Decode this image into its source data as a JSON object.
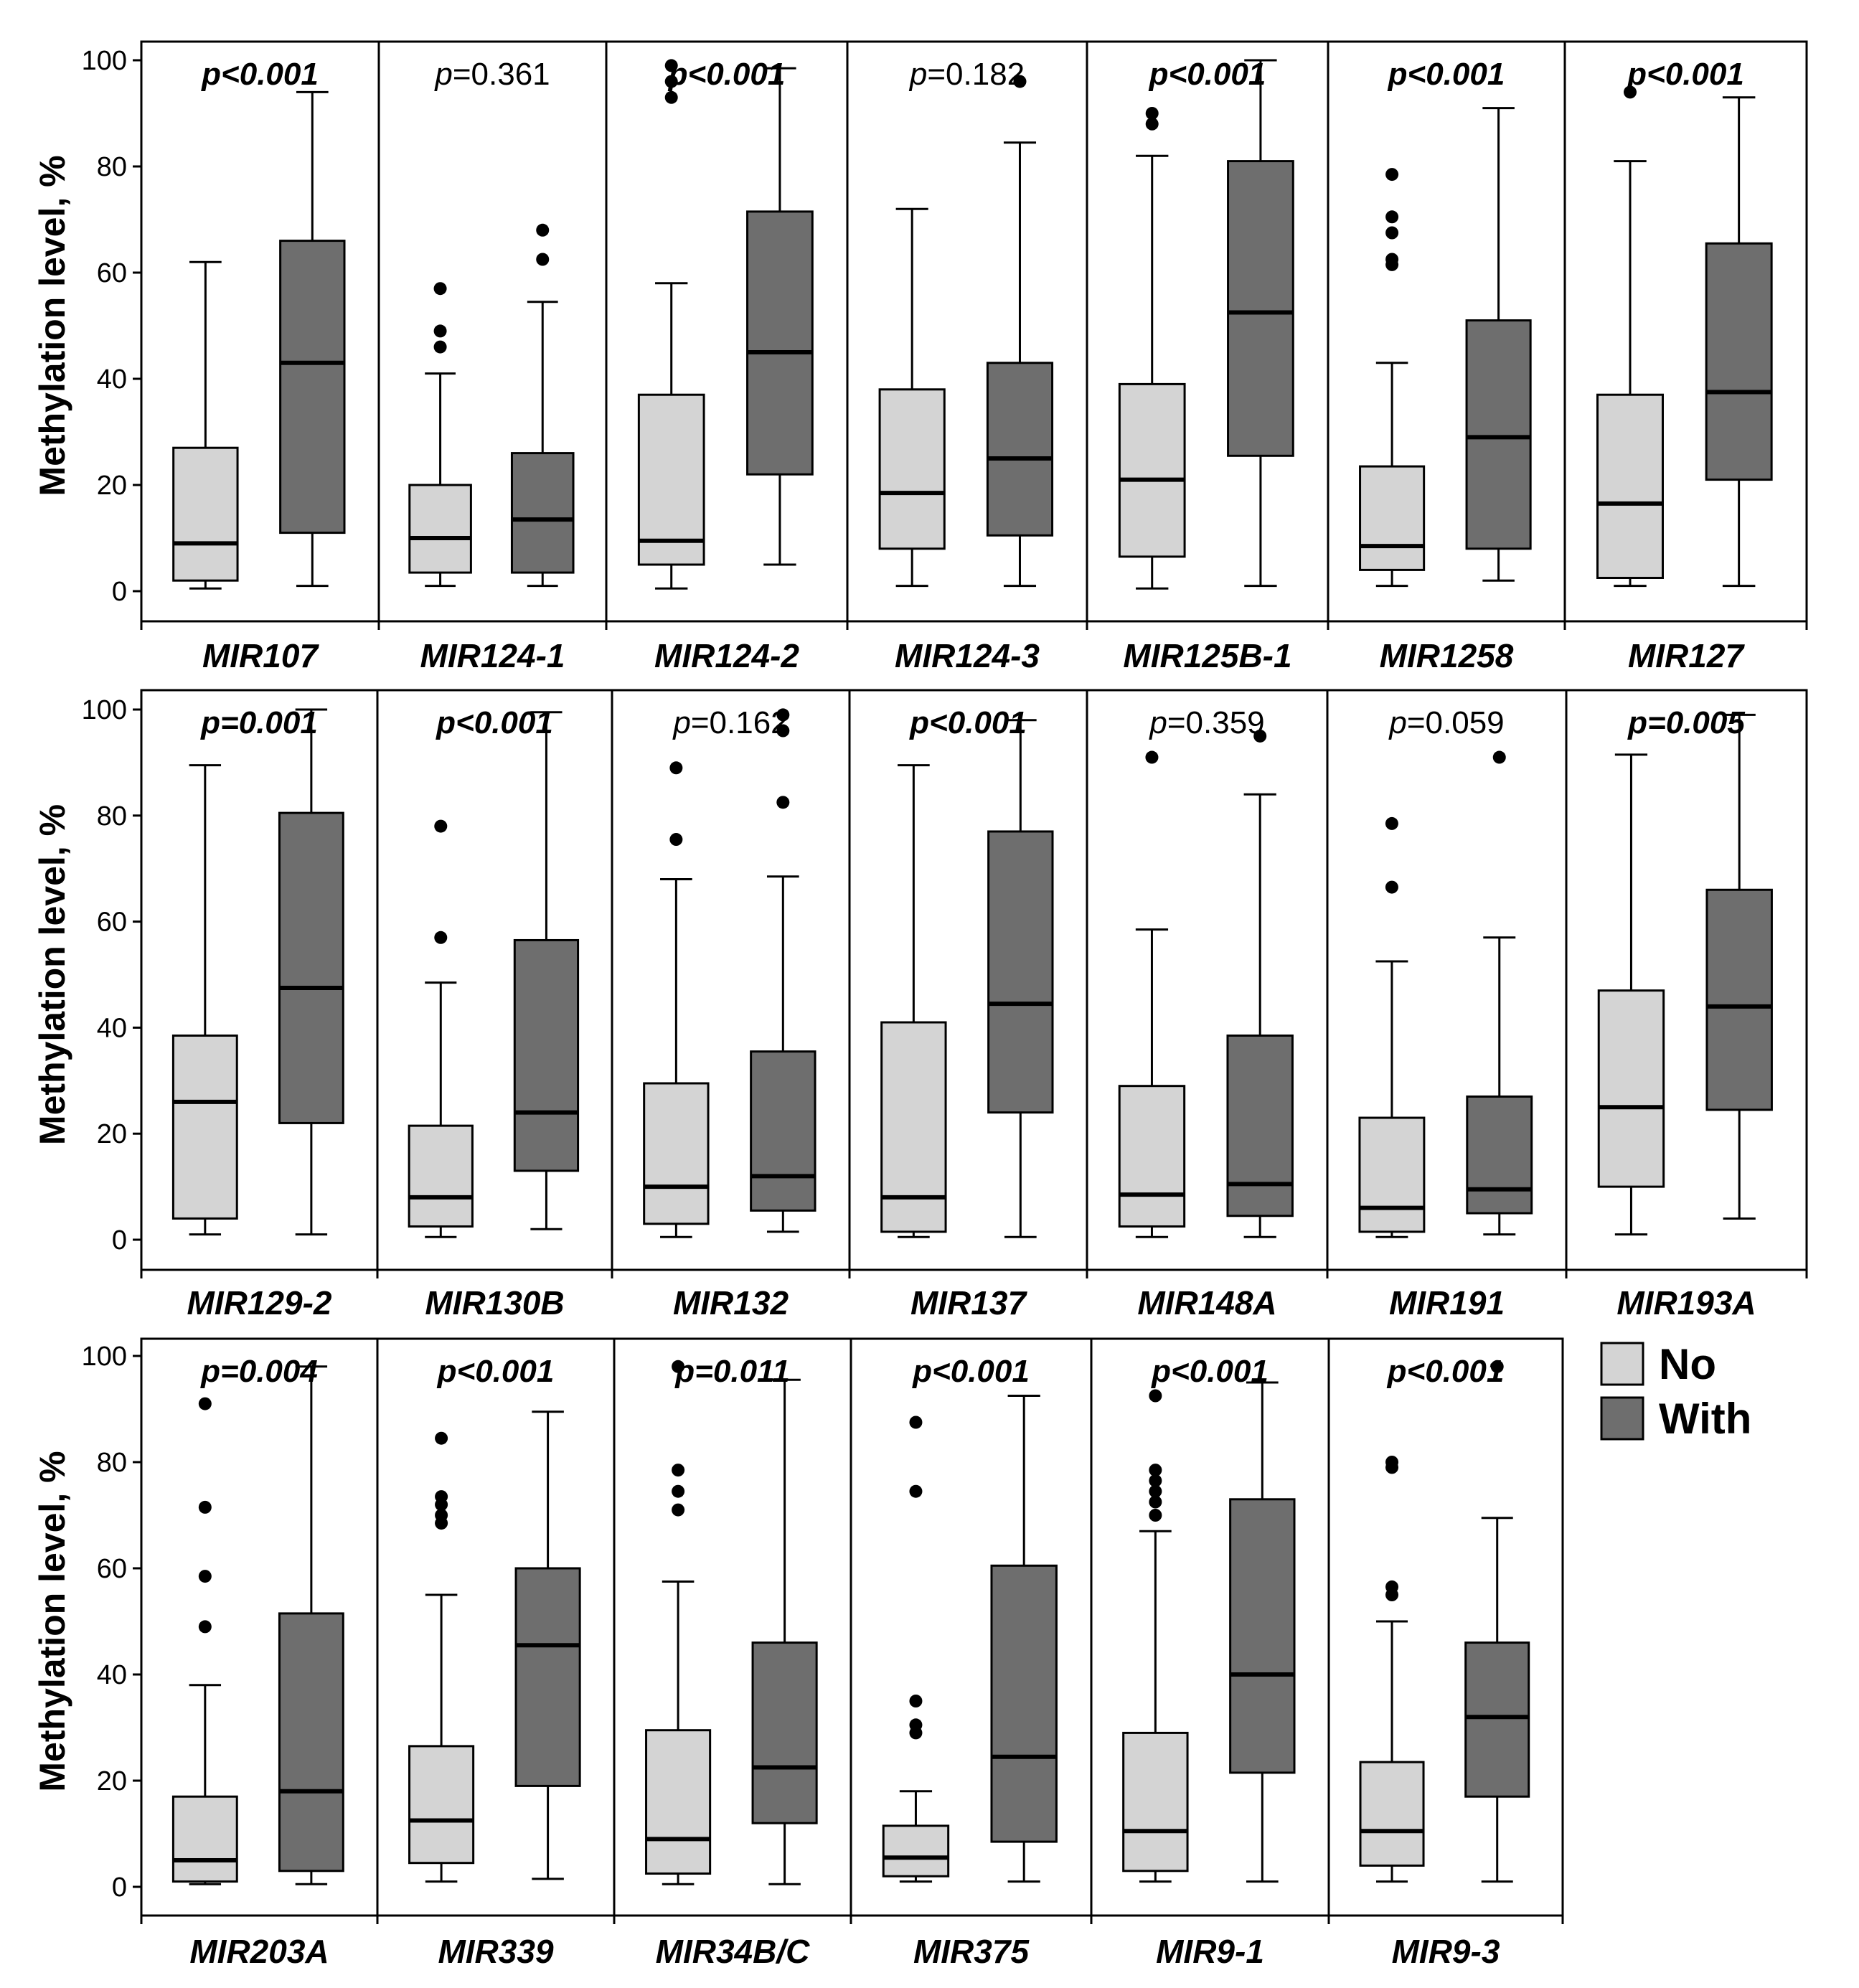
{
  "chart_data": {
    "type": "boxplot",
    "ylabel": "Methylation level, %",
    "ylim": [
      0,
      100
    ],
    "yticks": [
      0,
      20,
      40,
      60,
      80,
      100
    ],
    "legend": [
      {
        "label": "No",
        "color": "#d4d4d4"
      },
      {
        "label": "With",
        "color": "#6e6e6e"
      }
    ],
    "panels": [
      {
        "gene": "MIR107",
        "p": "p<0.001",
        "bold": true,
        "no": {
          "min": 0.5,
          "q1": 2,
          "median": 9,
          "q3": 27,
          "max": 62,
          "outliers": []
        },
        "with": {
          "min": 1,
          "q1": 11,
          "median": 43,
          "q3": 66,
          "max": 94,
          "outliers": []
        }
      },
      {
        "gene": "MIR124-1",
        "p": "p=0.361",
        "bold": false,
        "no": {
          "min": 1,
          "q1": 3.5,
          "median": 10,
          "q3": 20,
          "max": 41,
          "outliers": [
            46,
            49,
            57
          ]
        },
        "with": {
          "min": 1,
          "q1": 3.5,
          "median": 13.5,
          "q3": 26,
          "max": 54.5,
          "outliers": [
            62.5,
            68
          ]
        }
      },
      {
        "gene": "MIR124-2",
        "p": "p<0.001",
        "bold": true,
        "no": {
          "min": 0.5,
          "q1": 5,
          "median": 9.5,
          "q3": 37,
          "max": 58,
          "outliers": [
            93,
            96,
            99
          ]
        },
        "with": {
          "min": 5,
          "q1": 22,
          "median": 45,
          "q3": 71.5,
          "max": 98.5,
          "outliers": []
        }
      },
      {
        "gene": "MIR124-3",
        "p": "p=0.182",
        "bold": false,
        "no": {
          "min": 1,
          "q1": 8,
          "median": 18.5,
          "q3": 38,
          "max": 72,
          "outliers": []
        },
        "with": {
          "min": 1,
          "q1": 10.5,
          "median": 25,
          "q3": 43,
          "max": 84.5,
          "outliers": [
            96
          ]
        }
      },
      {
        "gene": "MIR125B-1",
        "p": "p<0.001",
        "bold": true,
        "no": {
          "min": 0.5,
          "q1": 6.5,
          "median": 21,
          "q3": 39,
          "max": 82,
          "outliers": [
            88,
            90
          ]
        },
        "with": {
          "min": 1,
          "q1": 25.5,
          "median": 52.5,
          "q3": 81,
          "max": 100,
          "outliers": []
        }
      },
      {
        "gene": "MIR1258",
        "p": "p<0.001",
        "bold": true,
        "no": {
          "min": 1,
          "q1": 4,
          "median": 8.5,
          "q3": 23.5,
          "max": 43,
          "outliers": [
            61.5,
            62.5,
            67.5,
            70.5,
            78.5
          ]
        },
        "with": {
          "min": 2,
          "q1": 8,
          "median": 29,
          "q3": 51,
          "max": 91,
          "outliers": []
        }
      },
      {
        "gene": "MIR127",
        "p": "p<0.001",
        "bold": true,
        "no": {
          "min": 1,
          "q1": 2.5,
          "median": 16.5,
          "q3": 37,
          "max": 81,
          "outliers": [
            94
          ]
        },
        "with": {
          "min": 1,
          "q1": 21,
          "median": 37.5,
          "q3": 65.5,
          "max": 93,
          "outliers": []
        }
      },
      {
        "gene": "MIR129-2",
        "p": "p=0.001",
        "bold": true,
        "no": {
          "min": 1,
          "q1": 4,
          "median": 26,
          "q3": 38.5,
          "max": 89.5,
          "outliers": []
        },
        "with": {
          "min": 1,
          "q1": 22,
          "median": 47.5,
          "q3": 80.5,
          "max": 100,
          "outliers": []
        }
      },
      {
        "gene": "MIR130B",
        "p": "p<0.001",
        "bold": true,
        "no": {
          "min": 0.5,
          "q1": 2.5,
          "median": 8,
          "q3": 21.5,
          "max": 48.5,
          "outliers": [
            57,
            78
          ]
        },
        "with": {
          "min": 2,
          "q1": 13,
          "median": 24,
          "q3": 56.5,
          "max": 99.5,
          "outliers": []
        }
      },
      {
        "gene": "MIR132",
        "p": "p=0.162",
        "bold": false,
        "no": {
          "min": 0.5,
          "q1": 3,
          "median": 10,
          "q3": 29.5,
          "max": 68,
          "outliers": [
            75.5,
            89
          ]
        },
        "with": {
          "min": 1.5,
          "q1": 5.5,
          "median": 12,
          "q3": 35.5,
          "max": 68.5,
          "outliers": [
            82.5,
            96,
            99
          ]
        }
      },
      {
        "gene": "MIR137",
        "p": "p<0.001",
        "bold": true,
        "no": {
          "min": 0.5,
          "q1": 1.5,
          "median": 8,
          "q3": 41,
          "max": 89.5,
          "outliers": []
        },
        "with": {
          "min": 0.5,
          "q1": 24,
          "median": 44.5,
          "q3": 77,
          "max": 98,
          "outliers": []
        }
      },
      {
        "gene": "MIR148A",
        "p": "p=0.359",
        "bold": false,
        "no": {
          "min": 0.5,
          "q1": 2.5,
          "median": 8.5,
          "q3": 29,
          "max": 58.5,
          "outliers": [
            91
          ]
        },
        "with": {
          "min": 0.5,
          "q1": 4.5,
          "median": 10.5,
          "q3": 38.5,
          "max": 84,
          "outliers": [
            95
          ]
        }
      },
      {
        "gene": "MIR191",
        "p": "p=0.059",
        "bold": false,
        "no": {
          "min": 0.5,
          "q1": 1.5,
          "median": 6,
          "q3": 23,
          "max": 52.5,
          "outliers": [
            66.5,
            78.5
          ]
        },
        "with": {
          "min": 1,
          "q1": 5,
          "median": 9.5,
          "q3": 27,
          "max": 57,
          "outliers": [
            91
          ]
        }
      },
      {
        "gene": "MIR193A",
        "p": "p=0.005",
        "bold": true,
        "no": {
          "min": 1,
          "q1": 10,
          "median": 25,
          "q3": 47,
          "max": 91.5,
          "outliers": []
        },
        "with": {
          "min": 4,
          "q1": 24.5,
          "median": 44,
          "q3": 66,
          "max": 99,
          "outliers": []
        }
      },
      {
        "gene": "MIR203A",
        "p": "p=0.004",
        "bold": true,
        "no": {
          "min": 0.5,
          "q1": 1,
          "median": 5,
          "q3": 17,
          "max": 38,
          "outliers": [
            49,
            58.5,
            71.5,
            91
          ]
        },
        "with": {
          "min": 0.5,
          "q1": 3,
          "median": 18,
          "q3": 51.5,
          "max": 98,
          "outliers": []
        }
      },
      {
        "gene": "MIR339",
        "p": "p<0.001",
        "bold": true,
        "no": {
          "min": 1,
          "q1": 4.5,
          "median": 12.5,
          "q3": 26.5,
          "max": 55,
          "outliers": [
            68.5,
            70,
            72,
            73.5,
            84.5
          ]
        },
        "with": {
          "min": 1.5,
          "q1": 19,
          "median": 45.5,
          "q3": 60,
          "max": 89.5,
          "outliers": []
        }
      },
      {
        "gene": "MIR34B/C",
        "p": "p=0.011",
        "bold": true,
        "no": {
          "min": 0.5,
          "q1": 2.5,
          "median": 9,
          "q3": 29.5,
          "max": 57.5,
          "outliers": [
            71,
            74.5,
            78.5,
            98
          ]
        },
        "with": {
          "min": 0.5,
          "q1": 12,
          "median": 22.5,
          "q3": 46,
          "max": 95.5,
          "outliers": []
        }
      },
      {
        "gene": "MIR375",
        "p": "p<0.001",
        "bold": true,
        "no": {
          "min": 1,
          "q1": 2,
          "median": 5.5,
          "q3": 11.5,
          "max": 18,
          "outliers": [
            29,
            30.5,
            35,
            74.5,
            87.5
          ]
        },
        "with": {
          "min": 1,
          "q1": 8.5,
          "median": 24.5,
          "q3": 60.5,
          "max": 92.5,
          "outliers": []
        }
      },
      {
        "gene": "MIR9-1",
        "p": "p<0.001",
        "bold": true,
        "no": {
          "min": 1,
          "q1": 3,
          "median": 10.5,
          "q3": 29,
          "max": 67,
          "outliers": [
            70,
            72.5,
            74.5,
            76.5,
            78.5,
            92.5
          ]
        },
        "with": {
          "min": 1,
          "q1": 21.5,
          "median": 40,
          "q3": 73,
          "max": 95,
          "outliers": []
        }
      },
      {
        "gene": "MIR9-3",
        "p": "p<0.001",
        "bold": true,
        "no": {
          "min": 1,
          "q1": 4,
          "median": 10.5,
          "q3": 23.5,
          "max": 50,
          "outliers": [
            55,
            56.5,
            79,
            80
          ]
        },
        "with": {
          "min": 1,
          "q1": 17,
          "median": 32,
          "q3": 46,
          "max": 69.5,
          "outliers": [
            98
          ]
        }
      }
    ]
  }
}
